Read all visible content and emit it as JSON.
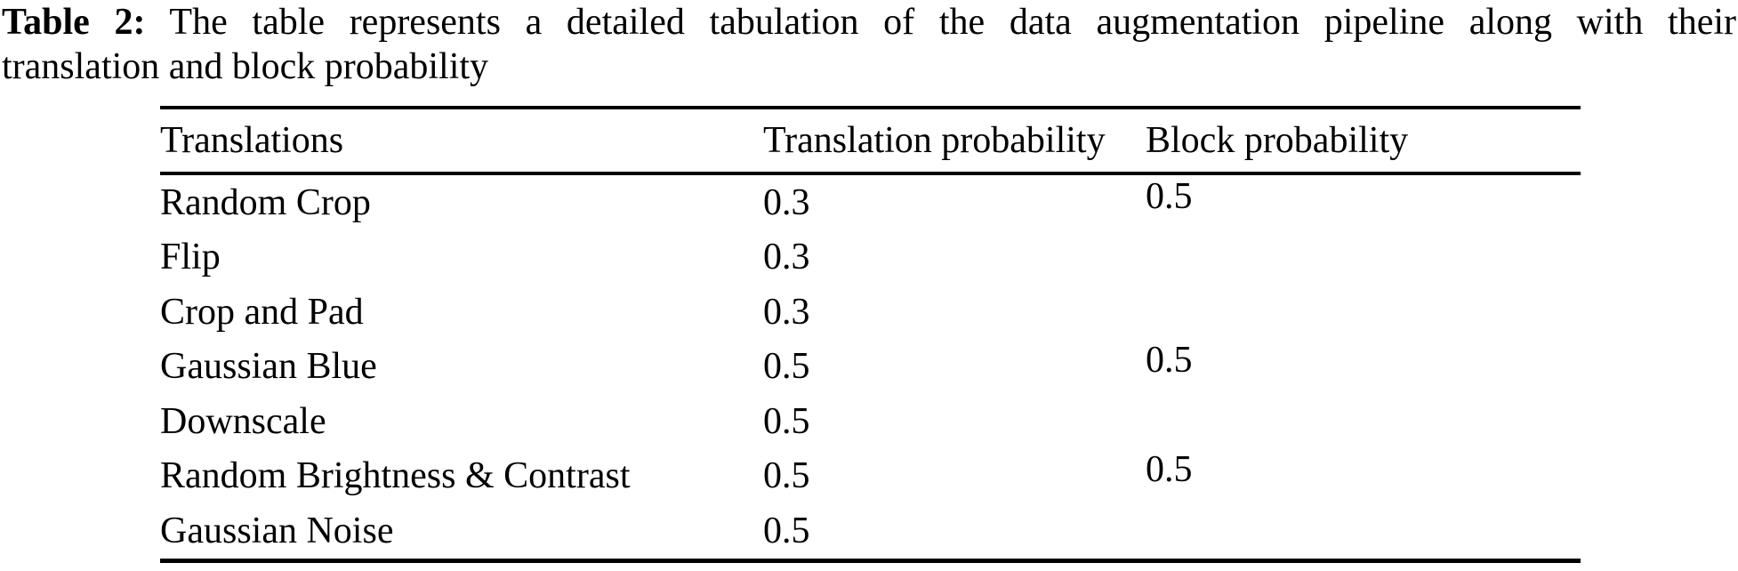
{
  "caption": {
    "label": "Table 2:",
    "line1_rest": "The table represents a detailed tabulation of the data augmentation pipeline along with their",
    "line2": "translation and block probability"
  },
  "table": {
    "columns": [
      "Translations",
      "Translation probability",
      "Block probability"
    ],
    "rows": [
      {
        "translation": "Random Crop",
        "translation_probability": "0.3",
        "block_probability": "0.5"
      },
      {
        "translation": "Flip",
        "translation_probability": "0.3",
        "block_probability": ""
      },
      {
        "translation": "Crop and Pad",
        "translation_probability": "0.3",
        "block_probability": ""
      },
      {
        "translation": "Gaussian Blue",
        "translation_probability": "0.5",
        "block_probability": "0.5"
      },
      {
        "translation": "Downscale",
        "translation_probability": "0.5",
        "block_probability": ""
      },
      {
        "translation": "Random Brightness & Contrast",
        "translation_probability": "0.5",
        "block_probability": "0.5"
      },
      {
        "translation": "Gaussian Noise",
        "translation_probability": "0.5",
        "block_probability": ""
      }
    ],
    "colors": {
      "text": "#000000",
      "background": "#ffffff",
      "rule": "#000000"
    }
  }
}
